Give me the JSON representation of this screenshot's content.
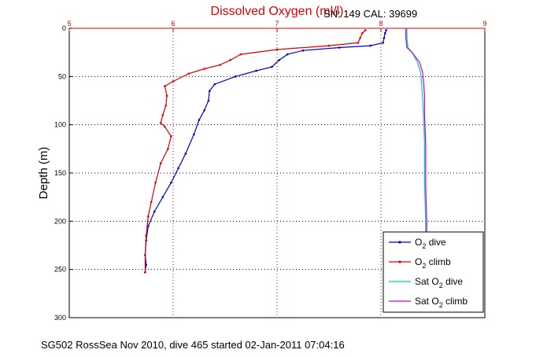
{
  "header": {
    "title": "Dissolved Oxygen (ml/l)",
    "serial": "SN: 149  CAL: 39699"
  },
  "footer": {
    "caption": "SG502 RossSea Nov 2010, dive 465 started 02-Jan-2011 07:04:16"
  },
  "legend": {
    "items": [
      {
        "main": "O",
        "sub": "2",
        "rest": " dive",
        "color": "#0000cc",
        "marker": "dot"
      },
      {
        "main": "O",
        "sub": "2",
        "rest": " climb",
        "color": "#dd0000",
        "marker": "dot"
      },
      {
        "main": "Sat O",
        "sub": "2",
        "rest": " dive",
        "color": "#00cccc",
        "marker": "none"
      },
      {
        "main": "Sat O",
        "sub": "2",
        "rest": " climb",
        "color": "#cc00cc",
        "marker": "none"
      }
    ]
  },
  "chart_data": {
    "type": "line",
    "title": "Dissolved Oxygen (ml/l)",
    "xlabel": "",
    "ylabel": "Depth (m)",
    "xlim": [
      5,
      9
    ],
    "ylim": [
      0,
      300
    ],
    "y_reversed": true,
    "x_axis_position": "top",
    "x_ticks": [
      5,
      6,
      7,
      8,
      9
    ],
    "y_ticks": [
      0,
      50,
      100,
      150,
      200,
      250,
      300
    ],
    "grid": true,
    "legend_position": "bottom-right",
    "series": [
      {
        "name": "O2 dive",
        "color": "#0000cc",
        "points": [
          [
            8.05,
            2
          ],
          [
            8.04,
            5
          ],
          [
            8.03,
            10
          ],
          [
            8.02,
            15
          ],
          [
            7.9,
            18
          ],
          [
            7.6,
            20
          ],
          [
            7.25,
            23
          ],
          [
            7.1,
            27
          ],
          [
            7.02,
            33
          ],
          [
            6.95,
            40
          ],
          [
            6.8,
            44
          ],
          [
            6.6,
            50
          ],
          [
            6.4,
            58
          ],
          [
            6.35,
            65
          ],
          [
            6.34,
            75
          ],
          [
            6.3,
            85
          ],
          [
            6.25,
            95
          ],
          [
            6.2,
            110
          ],
          [
            6.12,
            130
          ],
          [
            6.05,
            145
          ],
          [
            5.98,
            160
          ],
          [
            5.9,
            175
          ],
          [
            5.82,
            190
          ],
          [
            5.76,
            205
          ],
          [
            5.74,
            220
          ],
          [
            5.73,
            235
          ],
          [
            5.74,
            245
          ],
          [
            5.73,
            253
          ]
        ]
      },
      {
        "name": "O2 climb",
        "color": "#dd0000",
        "points": [
          [
            7.85,
            2
          ],
          [
            7.82,
            5
          ],
          [
            7.8,
            10
          ],
          [
            7.78,
            15
          ],
          [
            7.5,
            18
          ],
          [
            7.0,
            22
          ],
          [
            6.65,
            27
          ],
          [
            6.55,
            33
          ],
          [
            6.45,
            38
          ],
          [
            6.3,
            42
          ],
          [
            6.15,
            47
          ],
          [
            6.0,
            55
          ],
          [
            5.92,
            60
          ],
          [
            5.94,
            70
          ],
          [
            5.93,
            80
          ],
          [
            5.9,
            90
          ],
          [
            5.88,
            98
          ],
          [
            5.92,
            102
          ],
          [
            5.98,
            112
          ],
          [
            5.95,
            125
          ],
          [
            5.88,
            140
          ],
          [
            5.83,
            160
          ],
          [
            5.79,
            180
          ],
          [
            5.76,
            195
          ],
          [
            5.74,
            215
          ],
          [
            5.73,
            235
          ],
          [
            5.73,
            253
          ]
        ]
      },
      {
        "name": "Sat O2 dive",
        "color": "#00cccc",
        "points": [
          [
            8.25,
            0
          ],
          [
            8.25,
            10
          ],
          [
            8.26,
            20
          ],
          [
            8.3,
            25
          ],
          [
            8.35,
            35
          ],
          [
            8.38,
            45
          ],
          [
            8.39,
            55
          ],
          [
            8.4,
            70
          ],
          [
            8.41,
            90
          ],
          [
            8.42,
            120
          ],
          [
            8.42,
            160
          ],
          [
            8.43,
            200
          ],
          [
            8.43,
            235
          ]
        ]
      },
      {
        "name": "Sat O2 climb",
        "color": "#cc00cc",
        "points": [
          [
            8.24,
            0
          ],
          [
            8.24,
            10
          ],
          [
            8.25,
            20
          ],
          [
            8.3,
            25
          ],
          [
            8.37,
            35
          ],
          [
            8.4,
            45
          ],
          [
            8.41,
            55
          ],
          [
            8.42,
            70
          ],
          [
            8.42,
            90
          ],
          [
            8.43,
            120
          ],
          [
            8.43,
            160
          ],
          [
            8.44,
            200
          ],
          [
            8.44,
            235
          ]
        ]
      }
    ]
  }
}
